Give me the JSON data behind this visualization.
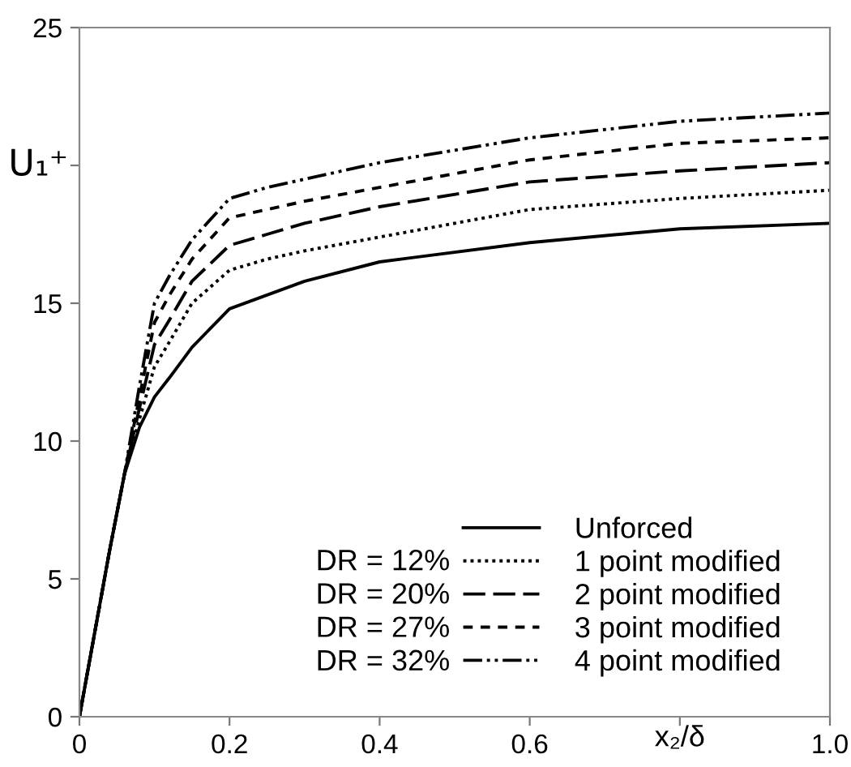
{
  "chart_data": {
    "type": "line",
    "xlabel": "x₂/δ",
    "ylabel": "U₁⁺",
    "x": [
      0,
      0.02,
      0.04,
      0.06,
      0.08,
      0.1,
      0.12,
      0.15,
      0.2,
      0.25,
      0.3,
      0.4,
      0.6,
      0.8,
      1.0
    ],
    "series": [
      {
        "name": "Unforced",
        "color": "#000000",
        "line_style": "solid",
        "values": [
          0,
          3,
          6,
          8.8,
          10.5,
          11.6,
          12.3,
          13.4,
          14.8,
          15.3,
          15.8,
          16.5,
          17.2,
          17.7,
          17.9
        ]
      },
      {
        "name": "1 point modified",
        "color": "#000000",
        "line_style": "dotted",
        "values": [
          0,
          3,
          6,
          8.8,
          10.8,
          12.7,
          13.6,
          15.0,
          16.2,
          16.6,
          16.9,
          17.4,
          18.4,
          18.8,
          19.1
        ]
      },
      {
        "name": "2 point modified",
        "color": "#000000",
        "line_style": "long dashed",
        "values": [
          0,
          3,
          6,
          8.8,
          11.2,
          13.5,
          14.4,
          15.8,
          17.1,
          17.5,
          17.9,
          18.5,
          19.4,
          19.8,
          20.1
        ]
      },
      {
        "name": "3 point modified",
        "color": "#000000",
        "line_style": "dashed",
        "values": [
          0,
          3,
          6,
          8.8,
          11.6,
          14.3,
          15.3,
          16.6,
          18.1,
          18.4,
          18.7,
          19.2,
          20.2,
          20.8,
          21.0
        ]
      },
      {
        "name": "4 point modified",
        "color": "#000000",
        "line_style": "dash-dot-dot",
        "values": [
          0,
          3,
          6,
          8.8,
          12.0,
          15.0,
          16.0,
          17.3,
          18.8,
          19.2,
          19.5,
          20.1,
          21.0,
          21.6,
          21.9
        ]
      }
    ],
    "annotations": [
      "DR = 12%",
      "DR = 20%",
      "DR = 27%",
      "DR = 32%"
    ],
    "xlim": [
      0,
      1.0
    ],
    "ylim": [
      0,
      25
    ],
    "xticks": [
      0,
      0.2,
      0.4,
      0.6,
      {
        "value": 0.8,
        "label": null
      },
      {
        "value": 1.0,
        "label": "1.0"
      }
    ],
    "yticks": [
      0,
      5,
      10,
      15,
      {
        "value": 20,
        "label": null
      },
      25
    ],
    "grid": false,
    "legend": "bottom right"
  }
}
